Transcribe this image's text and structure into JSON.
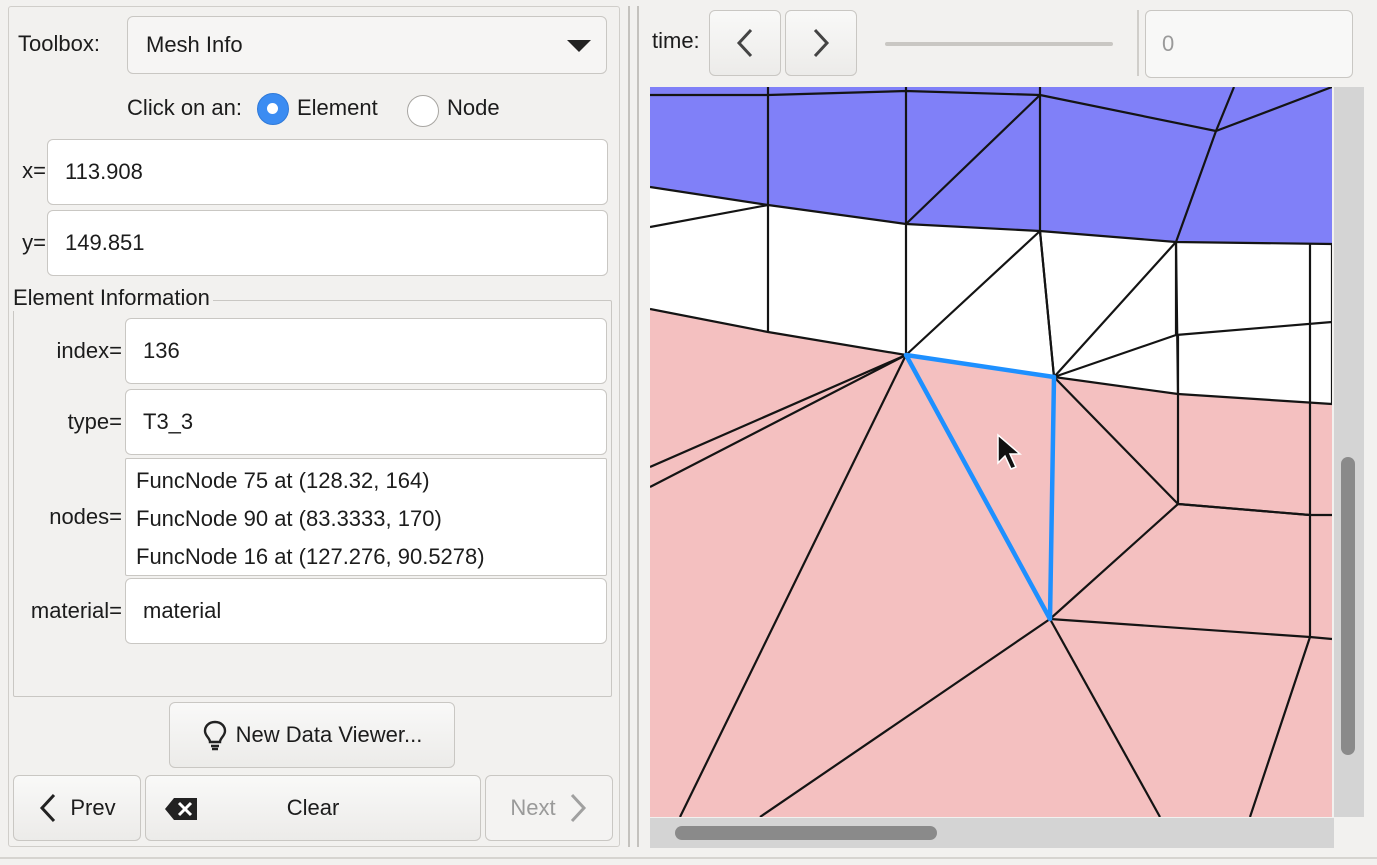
{
  "toolbox": {
    "label": "Toolbox:",
    "selected": "Mesh Info"
  },
  "click_on": {
    "label": "Click on an:",
    "options": [
      "Element",
      "Node"
    ],
    "selected": "Element"
  },
  "coords": {
    "x_label": "x=",
    "x_value": "113.908",
    "y_label": "y=",
    "y_value": "149.851"
  },
  "element_info": {
    "title": "Element Information",
    "index_label": "index=",
    "index_value": "136",
    "type_label": "type=",
    "type_value": "T3_3",
    "nodes_label": "nodes=",
    "nodes": [
      "FuncNode 75 at (128.32, 164)",
      "FuncNode 90 at (83.3333, 170)",
      "FuncNode 16 at (127.276, 90.5278)"
    ],
    "material_label": "material=",
    "material_value": "material"
  },
  "buttons": {
    "new_viewer": "New Data Viewer...",
    "prev": "Prev",
    "clear": "Clear",
    "next": "Next"
  },
  "time": {
    "label": "time:",
    "value": "0"
  },
  "mesh": {
    "colors": {
      "blue_region": "#8080f8",
      "white_region": "#ffffff",
      "pink_region": "#f4c0c0",
      "edges": "#141414",
      "selected": "#1e90ff"
    }
  }
}
